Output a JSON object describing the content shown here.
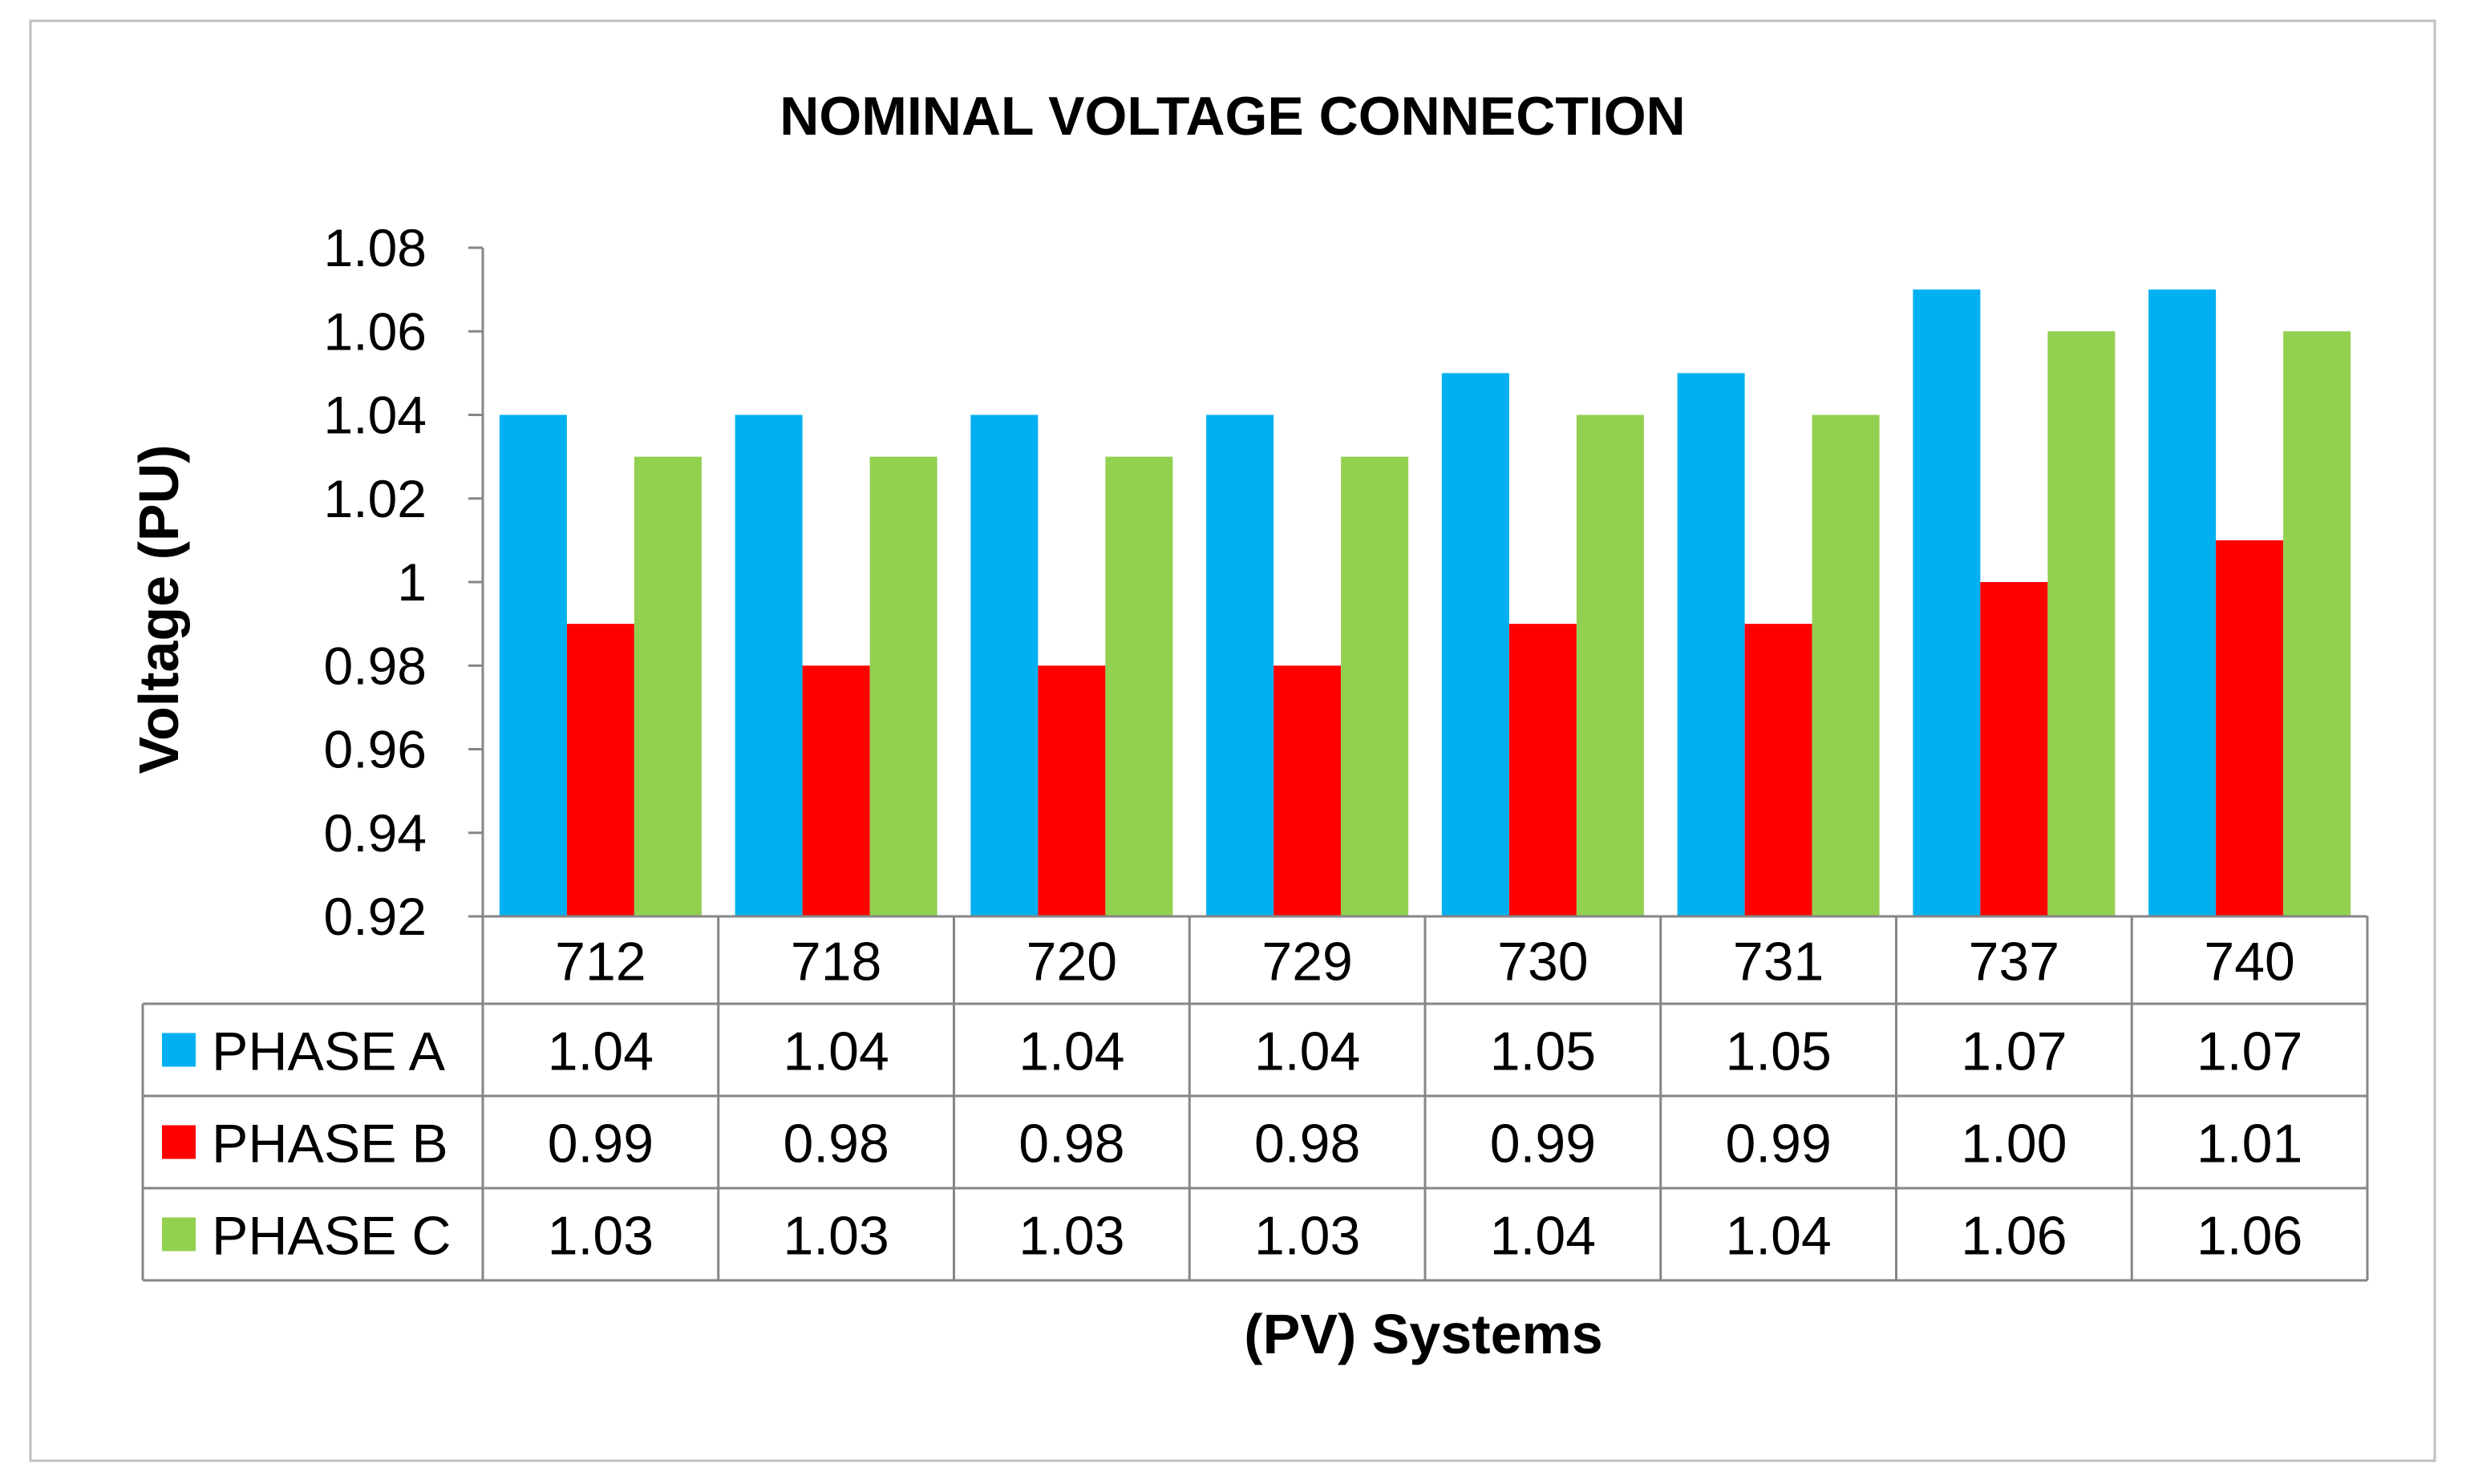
{
  "chart_data": {
    "type": "bar",
    "title": "NOMINAL VOLTAGE CONNECTION",
    "xlabel": "(PV)  Systems",
    "ylabel": "Voltage (PU)",
    "ylim": [
      0.92,
      1.08
    ],
    "yticks": [
      "1.08",
      "1.06",
      "1.04",
      "1.02",
      "1",
      "0.98",
      "0.96",
      "0.94",
      "0.92"
    ],
    "categories": [
      "712",
      "718",
      "720",
      "729",
      "730",
      "731",
      "737",
      "740"
    ],
    "series": [
      {
        "name": "PHASE A",
        "color": "#00B0F0",
        "values": [
          1.04,
          1.04,
          1.04,
          1.04,
          1.05,
          1.05,
          1.07,
          1.07
        ],
        "labels": [
          "1.04",
          "1.04",
          "1.04",
          "1.04",
          "1.05",
          "1.05",
          "1.07",
          "1.07"
        ]
      },
      {
        "name": "PHASE B",
        "color": "#FF0000",
        "values": [
          0.99,
          0.98,
          0.98,
          0.98,
          0.99,
          0.99,
          1.0,
          1.01
        ],
        "labels": [
          "0.99",
          "0.98",
          "0.98",
          "0.98",
          "0.99",
          "0.99",
          "1.00",
          "1.01"
        ]
      },
      {
        "name": "PHASE C",
        "color": "#92D050",
        "values": [
          1.03,
          1.03,
          1.03,
          1.03,
          1.04,
          1.04,
          1.06,
          1.06
        ],
        "labels": [
          "1.03",
          "1.03",
          "1.03",
          "1.03",
          "1.04",
          "1.04",
          "1.06",
          "1.06"
        ]
      }
    ],
    "grid": false,
    "legend": "data-table"
  }
}
